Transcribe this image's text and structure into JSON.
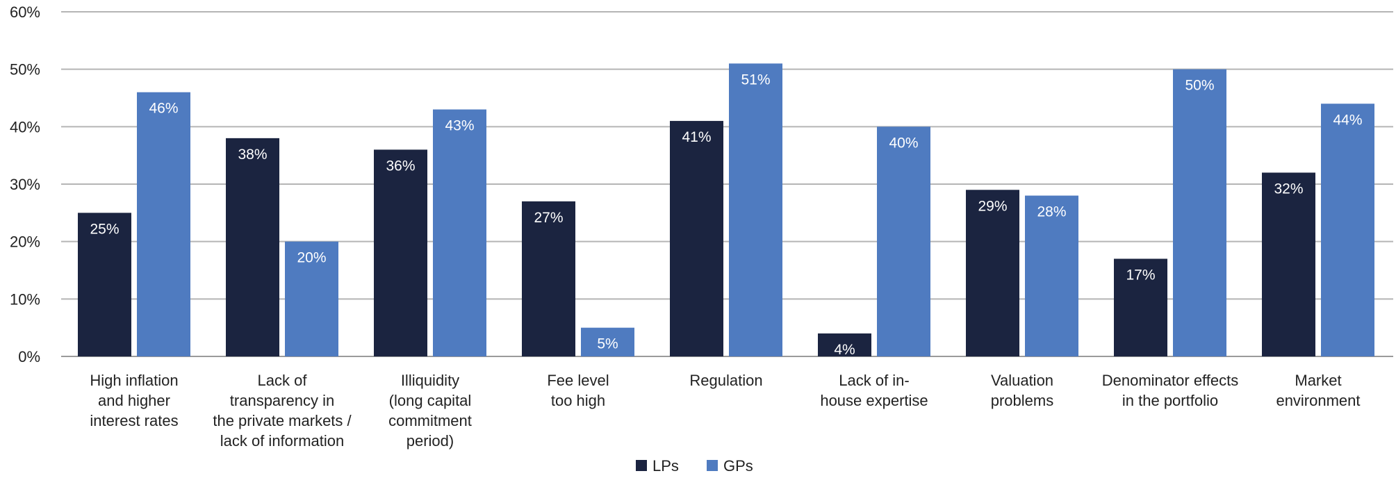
{
  "chart_data": {
    "type": "bar",
    "title": "",
    "xlabel": "",
    "ylabel": "",
    "ylim": [
      0,
      60
    ],
    "yticks": [
      0,
      10,
      20,
      30,
      40,
      50,
      60
    ],
    "ytick_labels": [
      "0%",
      "10%",
      "20%",
      "30%",
      "40%",
      "50%",
      "60%"
    ],
    "grid": true,
    "legend_position": "bottom-center",
    "categories": [
      [
        "High inflation",
        "and higher",
        "interest rates"
      ],
      [
        "Lack of",
        "transparency in",
        "the private markets /",
        "lack of information"
      ],
      [
        "Illiquidity",
        "(long capital",
        "commitment",
        "period)"
      ],
      [
        "Fee level",
        "too high"
      ],
      [
        "Regulation"
      ],
      [
        "Lack of in-",
        "house expertise"
      ],
      [
        "Valuation",
        "problems"
      ],
      [
        "Denominator effects",
        "in the portfolio"
      ],
      [
        "Market",
        "environment"
      ]
    ],
    "series": [
      {
        "name": "LPs",
        "color": "#1b2440",
        "values": [
          25,
          38,
          36,
          27,
          41,
          4,
          29,
          17,
          32
        ],
        "labels": [
          "25%",
          "38%",
          "36%",
          "27%",
          "41%",
          "4%",
          "29%",
          "17%",
          "32%"
        ]
      },
      {
        "name": "GPs",
        "color": "#4f7bc0",
        "values": [
          46,
          20,
          43,
          5,
          51,
          40,
          28,
          50,
          44
        ],
        "labels": [
          "46%",
          "20%",
          "43%",
          "5%",
          "51%",
          "40%",
          "28%",
          "50%",
          "44%"
        ]
      }
    ]
  }
}
